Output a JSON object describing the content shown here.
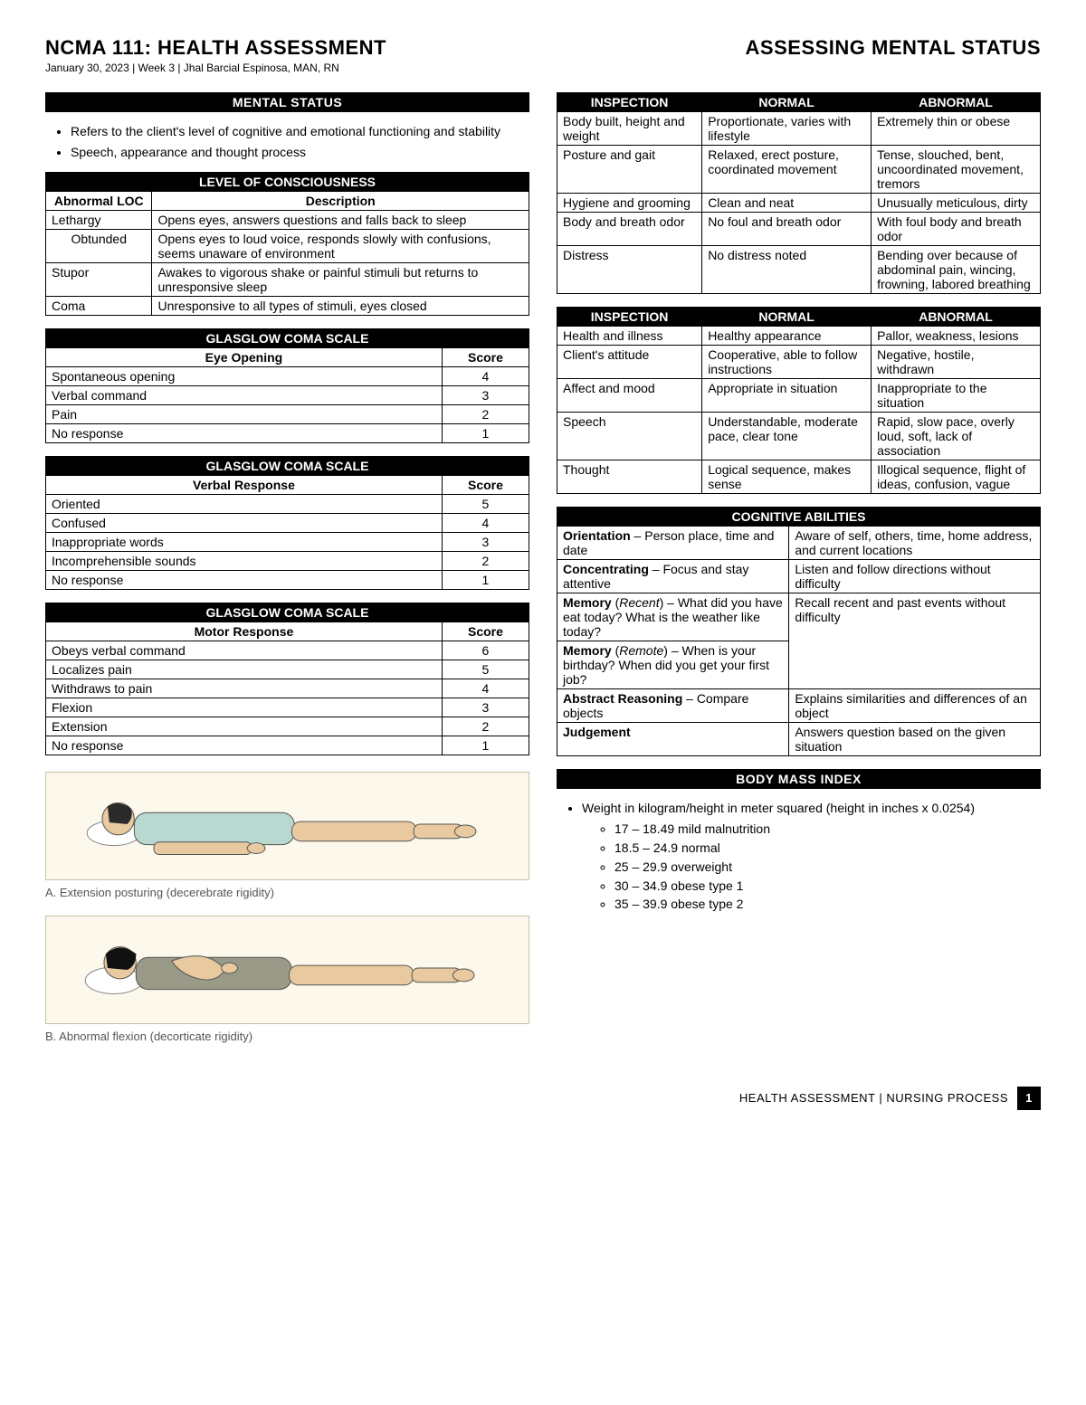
{
  "header": {
    "title_left": "NCMA 111: HEALTH ASSESSMENT",
    "subtitle": "January 30, 2023 | Week 3 | Jhal Barcial Espinosa, MAN, RN",
    "title_right": "ASSESSING MENTAL STATUS"
  },
  "left": {
    "section1_title": "MENTAL STATUS",
    "bullets1": [
      "Refers to the client's level of cognitive and emotional functioning and stability",
      "Speech, appearance and thought process"
    ],
    "loc": {
      "title": "LEVEL OF CONSCIOUSNESS",
      "col1": "Abnormal LOC",
      "col2": "Description",
      "rows": [
        [
          "Lethargy",
          "Opens eyes, answers questions and falls back to sleep"
        ],
        [
          "Obtunded",
          "Opens eyes to loud voice, responds slowly with confusions, seems unaware of environment"
        ],
        [
          "Stupor",
          "Awakes to vigorous shake or painful stimuli but returns to unresponsive sleep"
        ],
        [
          "Coma",
          "Unresponsive to all types of stimuli, eyes closed"
        ]
      ]
    },
    "gcs_eye": {
      "title": "GLASGLOW COMA SCALE",
      "sub": "Eye Opening",
      "score": "Score",
      "rows": [
        [
          "Spontaneous opening",
          "4"
        ],
        [
          "Verbal command",
          "3"
        ],
        [
          "Pain",
          "2"
        ],
        [
          "No response",
          "1"
        ]
      ]
    },
    "gcs_verbal": {
      "title": "GLASGLOW COMA SCALE",
      "sub": "Verbal Response",
      "score": "Score",
      "rows": [
        [
          "Oriented",
          "5"
        ],
        [
          "Confused",
          "4"
        ],
        [
          "Inappropriate words",
          "3"
        ],
        [
          "Incomprehensible sounds",
          "2"
        ],
        [
          "No response",
          "1"
        ]
      ]
    },
    "gcs_motor": {
      "title": "GLASGLOW COMA SCALE",
      "sub": "Motor Response",
      "score": "Score",
      "rows": [
        [
          "Obeys verbal command",
          "6"
        ],
        [
          "Localizes pain",
          "5"
        ],
        [
          "Withdraws to pain",
          "4"
        ],
        [
          "Flexion",
          "3"
        ],
        [
          "Extension",
          "2"
        ],
        [
          "No response",
          "1"
        ]
      ]
    },
    "figA_caption": "A. Extension posturing (decerebrate rigidity)",
    "figB_caption": "B. Abnormal flexion (decorticate rigidity)"
  },
  "right": {
    "insp1": {
      "h1": "INSPECTION",
      "h2": "NORMAL",
      "h3": "ABNORMAL",
      "rows": [
        [
          "Body built, height and weight",
          "Proportionate, varies with lifestyle",
          "Extremely thin or obese"
        ],
        [
          "Posture and gait",
          "Relaxed, erect posture, coordinated movement",
          "Tense, slouched, bent, uncoordinated movement, tremors"
        ],
        [
          "Hygiene and grooming",
          "Clean and neat",
          "Unusually meticulous, dirty"
        ],
        [
          "Body and breath odor",
          "No foul and breath odor",
          "With foul body and breath odor"
        ],
        [
          "Distress",
          "No distress noted",
          "Bending over because of abdominal pain, wincing, frowning, labored breathing"
        ]
      ]
    },
    "insp2": {
      "h1": "INSPECTION",
      "h2": "NORMAL",
      "h3": "ABNORMAL",
      "rows": [
        [
          "Health and illness",
          "Healthy appearance",
          "Pallor, weakness, lesions"
        ],
        [
          "Client's attitude",
          "Cooperative, able to follow instructions",
          "Negative, hostile, withdrawn"
        ],
        [
          "Affect and mood",
          "Appropriate in situation",
          "Inappropriate to the situation"
        ],
        [
          "Speech",
          "Understandable, moderate pace, clear tone",
          "Rapid, slow pace, overly loud, soft, lack of association"
        ],
        [
          "Thought",
          "Logical sequence, makes sense",
          "Illogical sequence, flight of ideas, confusion, vague"
        ]
      ]
    },
    "cog": {
      "title": "COGNITIVE ABILITIES",
      "rows": [
        [
          "<b>Orientation</b> – Person place, time and date",
          "Aware of self, others, time, home address, and current locations"
        ],
        [
          "<b>Concentrating</b> – Focus and stay attentive",
          "Listen and follow directions without difficulty"
        ],
        [
          "<b>Memory</b> (<i>Recent</i>) – What did you have eat today? What is the weather like today?",
          "Recall recent and past events without difficulty"
        ],
        [
          "<b>Memory</b> (<i>Remote</i>) – When is your birthday? When did you get your first job?",
          ""
        ],
        [
          "<b>Abstract Reasoning</b> – Compare objects",
          "Explains similarities and differences of an object"
        ],
        [
          "<b>Judgement</b>",
          "Answers question based on the given situation"
        ]
      ],
      "merge_row3_4": true
    },
    "bmi": {
      "title": "BODY MASS INDEX",
      "intro": "Weight in kilogram/height in meter squared (height in inches x 0.0254)",
      "items": [
        "17 – 18.49 mild malnutrition",
        "18.5 – 24.9 normal",
        "25 – 29.9 overweight",
        "30 – 34.9 obese type 1",
        "35 – 39.9 obese type 2"
      ]
    }
  },
  "footer": {
    "text": "HEALTH ASSESSMENT | NURSING PROCESS",
    "page": "1"
  },
  "colors": {
    "black": "#000000",
    "white": "#ffffff",
    "figbg": "#fdf8ec",
    "skin": "#e8c9a0",
    "cloth1": "#b8d8d0",
    "cloth2": "#9a9a88",
    "hair": "#2a2a2a"
  }
}
